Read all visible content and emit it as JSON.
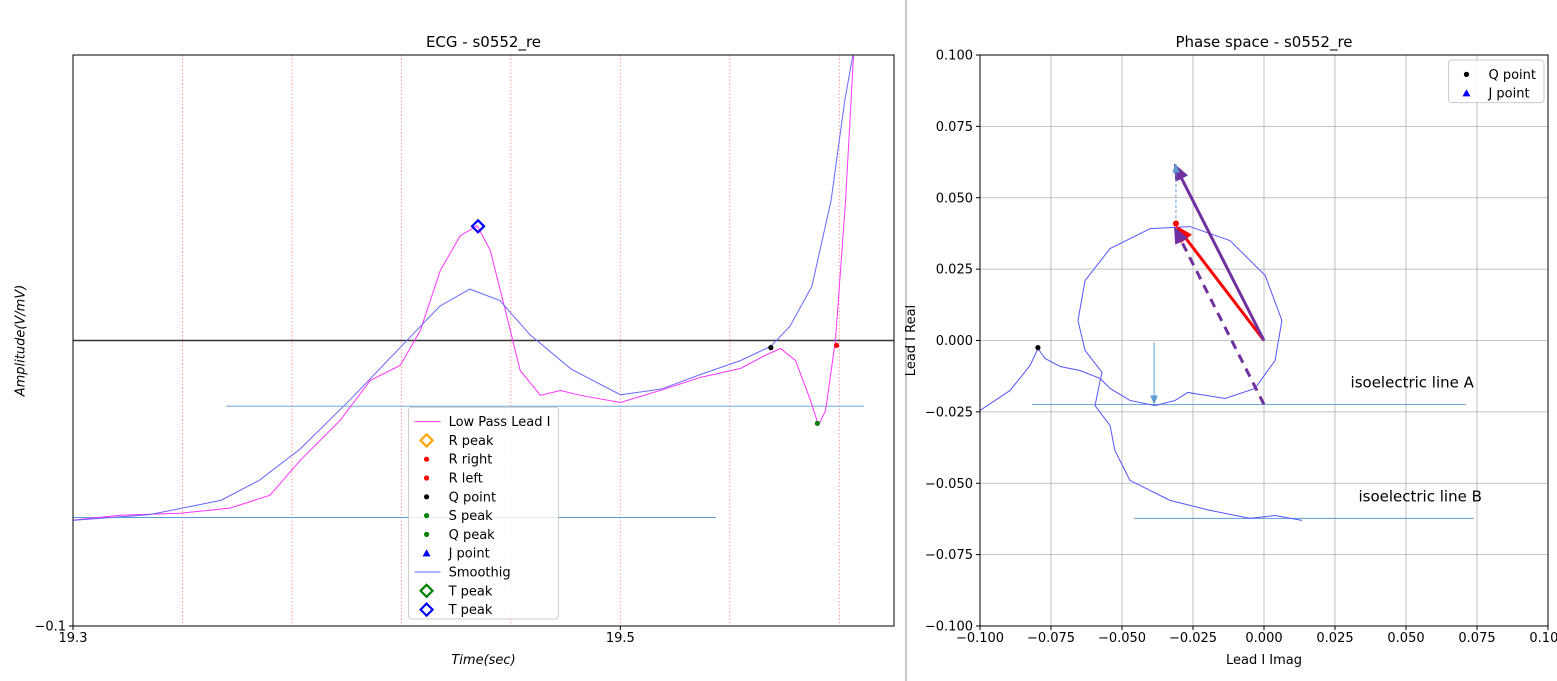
{
  "chart_data": [
    {
      "type": "line",
      "title": "ECG - s0552_re",
      "xlabel": "Time(sec)",
      "ylabel": "Amplitude(V/mV)",
      "xlim": [
        19.3,
        19.6
      ],
      "ylim": [
        -0.1,
        0.1
      ],
      "xticks": [
        19.3,
        19.5
      ],
      "yticks": [
        {
          "value": -0.1,
          "label": "−0.1"
        }
      ],
      "hline": 0,
      "vlines": [
        19.34,
        19.38,
        19.42,
        19.46,
        19.5,
        19.54,
        19.58
      ],
      "vline_color": "#ff9999",
      "segments": [
        {
          "y": -0.023,
          "x": [
            19.356,
            19.589
          ]
        },
        {
          "y": -0.062,
          "x": [
            19.3,
            19.535
          ]
        }
      ],
      "segment_color": "#5b9bd5",
      "legend": "lower center",
      "series": [
        {
          "name": "Low Pass Lead I",
          "color": "#ff33ff",
          "x": [
            19.3,
            19.3172,
            19.3391,
            19.3574,
            19.372,
            19.383,
            19.3976,
            19.4086,
            19.4196,
            19.4269,
            19.4342,
            19.4415,
            19.4477,
            19.4525,
            19.458,
            19.4634,
            19.4708,
            19.4781,
            19.4854,
            19.5,
            19.5146,
            19.5293,
            19.5439,
            19.553,
            19.5585,
            19.564,
            19.5695,
            19.5724,
            19.575,
            19.5786,
            19.5823,
            19.5852
          ],
          "values": [
            -0.0629,
            -0.0612,
            -0.0605,
            -0.0587,
            -0.0542,
            -0.042,
            -0.028,
            -0.014,
            -0.0087,
            0.0035,
            0.0245,
            0.0367,
            0.0402,
            0.0315,
            0.0105,
            -0.0105,
            -0.0192,
            -0.0175,
            -0.0192,
            -0.0217,
            -0.0175,
            -0.0129,
            -0.0098,
            -0.0052,
            -0.0028,
            -0.007,
            -0.021,
            -0.0297,
            -0.0245,
            0,
            0.049,
            0.0997
          ]
        },
        {
          "name": "R peak",
          "color": "#ffa500",
          "marker": "D",
          "x": [],
          "values": []
        },
        {
          "name": "R right",
          "color": "#ff0000",
          "marker": "o",
          "x": [
            19.579
          ],
          "values": [
            -0.0017
          ]
        },
        {
          "name": "R left",
          "color": "#ff0000",
          "marker": "o",
          "x": [],
          "values": []
        },
        {
          "name": "Q point",
          "color": "#000000",
          "marker": "o",
          "x": [
            19.555
          ],
          "values": [
            -0.0025
          ]
        },
        {
          "name": "S peak",
          "color": "#008000",
          "marker": "o",
          "x": [
            19.572
          ],
          "values": [
            -0.029
          ]
        },
        {
          "name": "Q peak",
          "color": "#008000",
          "marker": "o",
          "x": [],
          "values": []
        },
        {
          "name": "J point",
          "color": "#0000ff",
          "marker": "^",
          "x": [],
          "values": []
        },
        {
          "name": "Smoothig",
          "color": "#6666ff",
          "x": [
            19.3,
            19.328,
            19.354,
            19.368,
            19.383,
            19.401,
            19.42,
            19.434,
            19.445,
            19.456,
            19.467,
            19.482,
            19.5,
            19.515,
            19.529,
            19.544,
            19.555,
            19.562,
            19.57,
            19.577,
            19.582,
            19.585
          ],
          "values": [
            -0.063,
            -0.061,
            -0.056,
            -0.049,
            -0.038,
            -0.021,
            -0.002,
            0.012,
            0.018,
            0.014,
            0.002,
            -0.01,
            -0.019,
            -0.017,
            -0.012,
            -0.007,
            -0.002,
            0.005,
            0.019,
            0.049,
            0.084,
            0.1
          ]
        },
        {
          "name": "T peak",
          "color": "#008000",
          "marker": "D",
          "x": [],
          "values": []
        },
        {
          "name": "T peak",
          "color": "#0000ff",
          "marker": "D",
          "x": [
            19.448
          ],
          "values": [
            0.04
          ]
        }
      ]
    },
    {
      "type": "line",
      "title": "Phase space - s0552_re",
      "xlabel": "Lead I Imag",
      "ylabel": "Lead I Real",
      "xlim": [
        -0.1,
        0.1
      ],
      "ylim": [
        -0.1,
        0.1
      ],
      "xticks": [
        {
          "value": -0.1,
          "label": "−0.100"
        },
        {
          "value": -0.075,
          "label": "−0.075"
        },
        {
          "value": -0.05,
          "label": "−0.050"
        },
        {
          "value": -0.025,
          "label": "−0.025"
        },
        {
          "value": 0,
          "label": "0.000"
        },
        0.025,
        {
          "value": 0.05,
          "label": "0.050"
        },
        0.075,
        {
          "value": 0.1,
          "label": "0.100"
        }
      ],
      "yticks": [
        {
          "value": -0.1,
          "label": "−0.100"
        },
        {
          "value": -0.075,
          "label": "−0.075"
        },
        {
          "value": -0.05,
          "label": "−0.050"
        },
        {
          "value": -0.025,
          "label": "−0.025"
        },
        {
          "value": 0,
          "label": "0.000"
        },
        0.025,
        {
          "value": 0.05,
          "label": "0.050"
        },
        0.075,
        {
          "value": 0.1,
          "label": "0.100"
        }
      ],
      "grid": true,
      "legend": "upper right",
      "series": [
        {
          "color": "#5555ff",
          "x": [
            0.0134,
            0.0039,
            -0.0049,
            -0.019,
            -0.0331,
            -0.0472,
            -0.0525,
            -0.0542,
            -0.0595,
            -0.0577,
            -0.057,
            -0.063,
            -0.0655,
            -0.063,
            -0.0542,
            -0.0401,
            -0.0261,
            -0.012,
            0.0004,
            0.0063,
            0.0039,
            -0.0032,
            -0.0137,
            -0.0225,
            -0.0268,
            -0.0313,
            -0.0384,
            -0.0472,
            -0.0542,
            -0.0577,
            -0.0648,
            -0.0718,
            -0.0771,
            -0.0796,
            -0.0824,
            -0.0894,
            -0.1
          ],
          "values": [
            -0.063,
            -0.0613,
            -0.0623,
            -0.0595,
            -0.056,
            -0.049,
            -0.0385,
            -0.0298,
            -0.0228,
            -0.014,
            -0.0112,
            -0.0035,
            0.007,
            0.021,
            0.0322,
            0.0392,
            0.0399,
            0.035,
            0.0228,
            0.007,
            -0.007,
            -0.0168,
            -0.0203,
            -0.0189,
            -0.0182,
            -0.021,
            -0.0228,
            -0.021,
            -0.0168,
            -0.0133,
            -0.0105,
            -0.0091,
            -0.0063,
            -0.0028,
            -0.0088,
            -0.0175,
            -0.0245
          ]
        },
        {
          "name": "Q point",
          "color": "#000000",
          "marker": "o",
          "x": [
            -0.0796
          ],
          "values": [
            -0.0025
          ]
        },
        {
          "name": "J point",
          "color": "#0000ff",
          "marker": "^",
          "x": [],
          "values": []
        }
      ],
      "points": [
        {
          "x": -0.031,
          "y": 0.041,
          "color": "#ff0000"
        }
      ],
      "arrows": [
        {
          "from": [
            0,
            0
          ],
          "to": [
            -0.031,
            0.0403
          ],
          "color": "#ff0000",
          "linewidth": 3
        },
        {
          "from": [
            0,
            0
          ],
          "to": [
            -0.0317,
            0.062
          ],
          "color": "#7030a0",
          "linewidth": 3
        },
        {
          "from": [
            0,
            -0.0224
          ],
          "to": [
            -0.0317,
            0.04
          ],
          "color": "#7030a0",
          "linewidth": 3,
          "dashed": true
        },
        {
          "from": [
            -0.031,
            0.041
          ],
          "to": [
            -0.031,
            0.062
          ],
          "color": "#5b9bd5",
          "linewidth": 1,
          "dashed": true
        },
        {
          "from": [
            -0.0387,
            -0.0007
          ],
          "to": [
            -0.0387,
            -0.0224
          ],
          "color": "#5b9bd5",
          "linewidth": 1
        }
      ],
      "segments": [
        {
          "y": -0.0224,
          "x": [
            -0.0817,
            0.0711
          ],
          "label": "isoelectric line A"
        },
        {
          "y": -0.0623,
          "x": [
            -0.0458,
            0.0739
          ],
          "label": "isoelectric line B"
        }
      ],
      "segment_color": "#5b9bd5"
    }
  ]
}
